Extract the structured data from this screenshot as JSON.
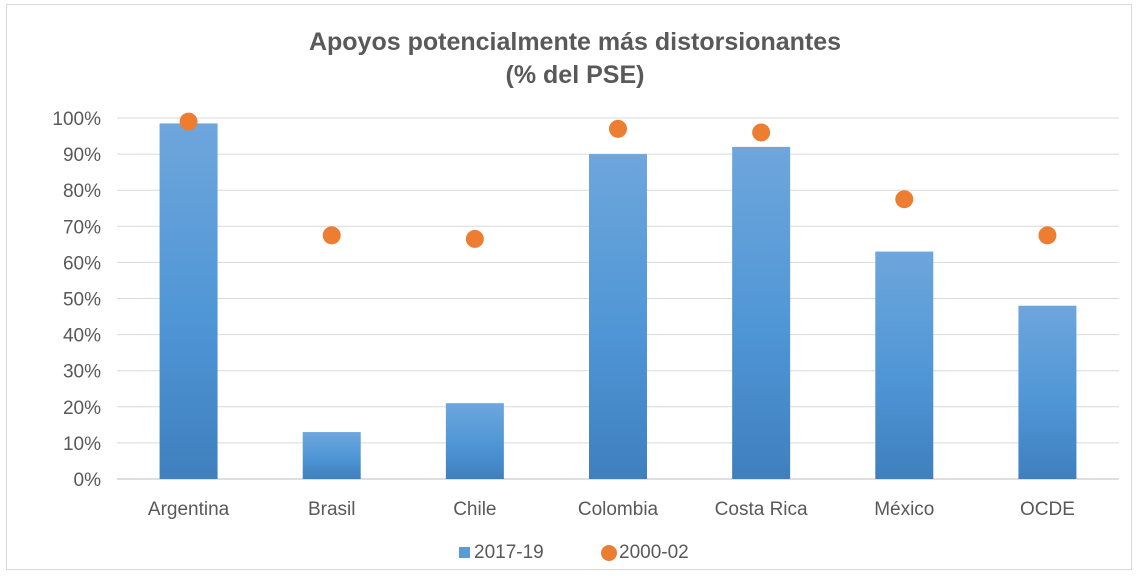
{
  "chart_data": {
    "type": "bar",
    "title": "Apoyos potencialmente más distorsionantes",
    "subtitle": "(% del PSE)",
    "categories": [
      "Argentina",
      "Brasil",
      "Chile",
      "Colombia",
      "Costa Rica",
      "México",
      "OCDE"
    ],
    "series": [
      {
        "name": "2017-19",
        "type": "bar",
        "color": "#5b9bd5",
        "values": [
          98.5,
          13,
          21,
          90,
          92,
          63,
          48
        ]
      },
      {
        "name": "2000-02",
        "type": "scatter",
        "color": "#ed7d31",
        "values": [
          99,
          67.5,
          66.5,
          97,
          96,
          77.5,
          67.5
        ]
      }
    ],
    "y_ticks": [
      "0%",
      "10%",
      "20%",
      "30%",
      "40%",
      "50%",
      "60%",
      "70%",
      "80%",
      "90%",
      "100%"
    ],
    "ylim": [
      0,
      100
    ],
    "xlabel": "",
    "ylabel": "",
    "grid": true,
    "legend_position": "bottom"
  }
}
